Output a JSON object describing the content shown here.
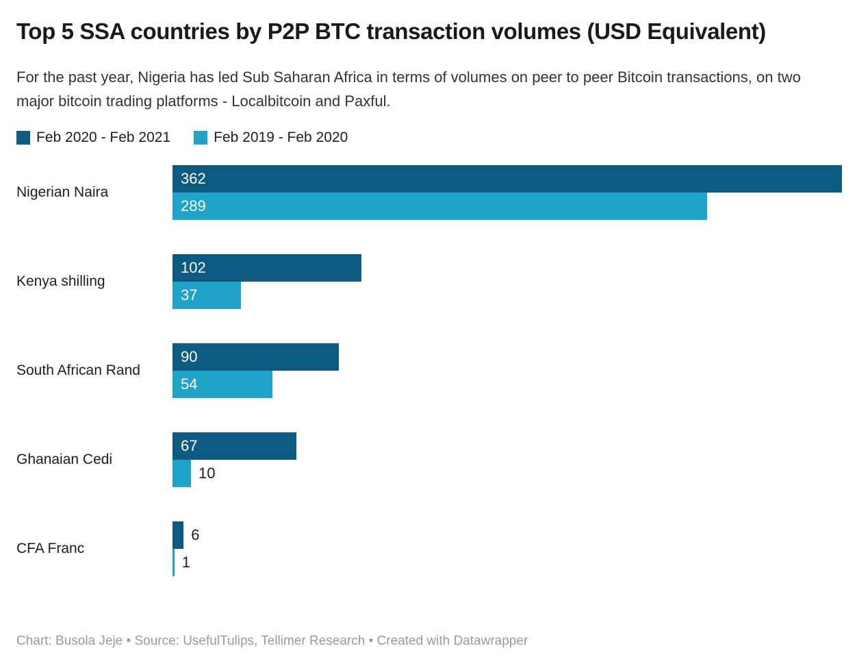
{
  "title": "Top 5 SSA countries by P2P BTC transaction volumes (USD Equivalent)",
  "subtitle": "For the past year, Nigeria has led Sub Saharan Africa in terms of volumes on peer to peer Bitcoin transactions, on two major bitcoin trading platforms - Localbitcoin and Paxful.",
  "legend": {
    "items": [
      {
        "label": "Feb 2020 - Feb 2021",
        "color": "#0d5a80"
      },
      {
        "label": "Feb 2019 - Feb 2020",
        "color": "#1fa3c9"
      }
    ]
  },
  "chart_data": {
    "type": "bar",
    "orientation": "horizontal",
    "title": "Top 5 SSA countries by P2P BTC transaction volumes (USD Equivalent)",
    "categories": [
      "Nigerian Naira",
      "Kenya shilling",
      "South African Rand",
      "Ghanaian Cedi",
      "CFA Franc"
    ],
    "series": [
      {
        "name": "Feb 2020 - Feb 2021",
        "color": "#0d5a80",
        "values": [
          362,
          102,
          90,
          67,
          6
        ]
      },
      {
        "name": "Feb 2019 - Feb 2020",
        "color": "#1fa3c9",
        "values": [
          289,
          37,
          54,
          10,
          1
        ]
      }
    ],
    "value_labels": true,
    "xlim": [
      0,
      362
    ],
    "grid": false,
    "legend_position": "top"
  },
  "footer": "Chart: Busola Jeje • Source: UsefulTulips, Tellimer Research • Created with Datawrapper",
  "colors": {
    "series1": "#0d5a80",
    "series2": "#1fa3c9",
    "text_dark": "#1d1d1d",
    "text_subtitle": "#333333",
    "footer_gray": "#9a9a9a",
    "value_label_inside": "#ffffff",
    "background": "#ffffff"
  }
}
